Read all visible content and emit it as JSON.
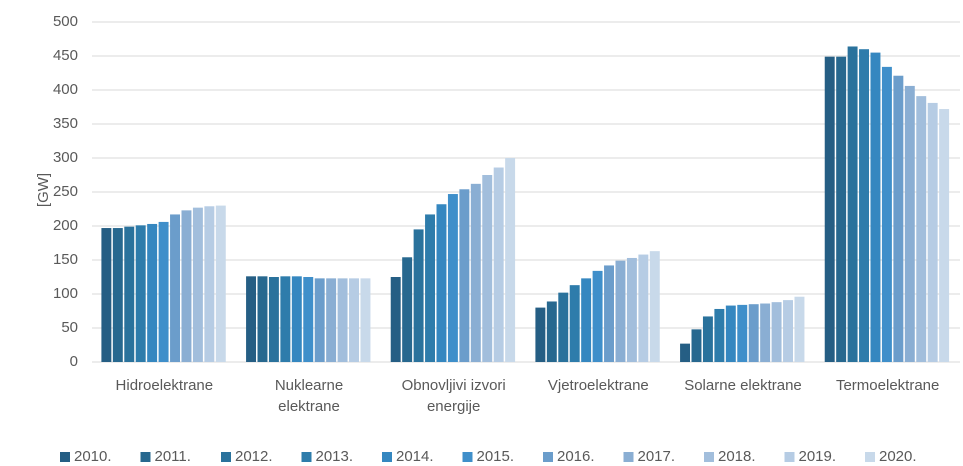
{
  "chart_data": {
    "type": "bar",
    "y_label": "[GW]",
    "categories": [
      "Hidroelektrane",
      "Nuklearne\nelektrane",
      "Obnovljivi izvori\nenergije",
      "Vjetroelektrane",
      "Solarne elektrane",
      "Termoelektrane"
    ],
    "series": [
      {
        "name": "2010.",
        "color": "#255e84",
        "values": [
          197,
          126,
          125,
          80,
          27,
          449
        ]
      },
      {
        "name": "2011.",
        "color": "#27688f",
        "values": [
          197,
          126,
          154,
          89,
          48,
          449
        ]
      },
      {
        "name": "2012.",
        "color": "#2a729c",
        "values": [
          199,
          125,
          195,
          102,
          67,
          464
        ]
      },
      {
        "name": "2013.",
        "color": "#2e7cab",
        "values": [
          201,
          126,
          217,
          113,
          78,
          460
        ]
      },
      {
        "name": "2014.",
        "color": "#3587c0",
        "values": [
          203,
          126,
          232,
          123,
          83,
          455
        ]
      },
      {
        "name": "2015.",
        "color": "#3f8fca",
        "values": [
          206,
          125,
          247,
          134,
          84,
          434
        ]
      },
      {
        "name": "2016.",
        "color": "#6b9dcb",
        "values": [
          217,
          123,
          254,
          142,
          85,
          421
        ]
      },
      {
        "name": "2017.",
        "color": "#8aaed3",
        "values": [
          223,
          123,
          262,
          149,
          86,
          406
        ]
      },
      {
        "name": "2018.",
        "color": "#a2bedc",
        "values": [
          227,
          123,
          275,
          153,
          88,
          391
        ]
      },
      {
        "name": "2019.",
        "color": "#b6cce4",
        "values": [
          229,
          123,
          286,
          158,
          91,
          381
        ]
      },
      {
        "name": "2020.",
        "color": "#c8d9ea",
        "values": [
          230,
          123,
          300,
          163,
          96,
          372
        ]
      }
    ],
    "ylim": [
      0,
      500
    ],
    "yticks": [
      0,
      50,
      100,
      150,
      200,
      250,
      300,
      350,
      400,
      450,
      500
    ],
    "grid": true,
    "legend": "bottom"
  }
}
